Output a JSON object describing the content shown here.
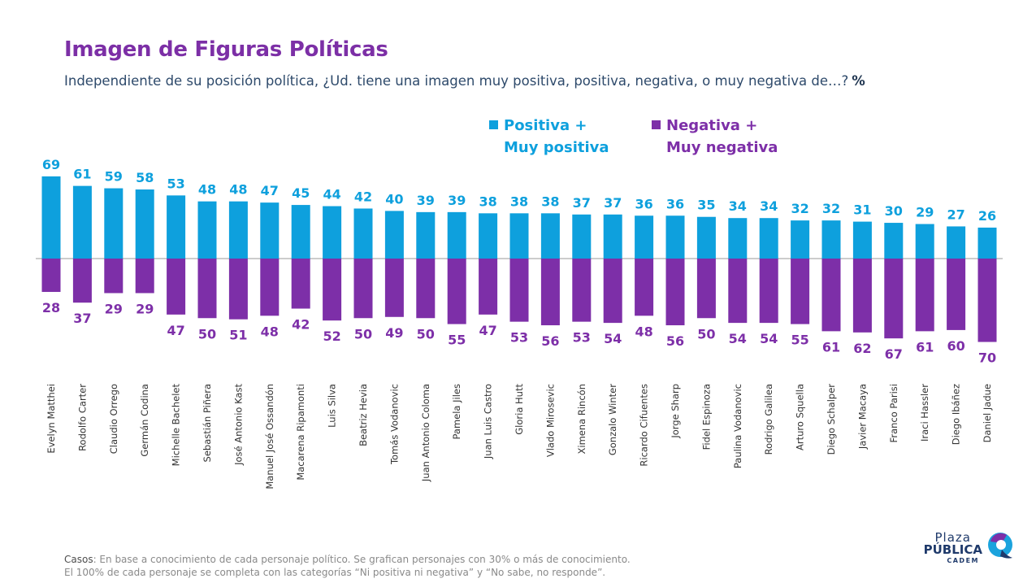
{
  "header": {
    "title": "Imagen de Figuras Políticas",
    "subtitle": "Independiente de su posición política, ¿Ud. tiene una imagen muy positiva, positiva, negativa, o muy negativa de…?",
    "unit": "%"
  },
  "legend": {
    "positive_label": "Positiva +\nMuy positiva",
    "negative_label": "Negativa +\nMuy negativa"
  },
  "colors": {
    "positive": "#0ea0dd",
    "negative": "#7d2fa8",
    "title": "#7c2fa6"
  },
  "chart_data": {
    "type": "bar",
    "title": "Imagen de Figuras Políticas",
    "xlabel": "",
    "ylabel": "",
    "unit": "%",
    "grid": false,
    "legend_position": "top-right",
    "categories": [
      "Evelyn Matthei",
      "Rodolfo Carter",
      "Claudio Orrego",
      "Germán Codina",
      "Michelle Bachelet",
      "Sebastián Piñera",
      "José Antonio Kast",
      "Manuel José Ossandón",
      "Macarena Ripamonti",
      "Luis Silva",
      "Beatriz Hevia",
      "Tomás Vodanovic",
      "Juan Antonio Coloma",
      "Pamela Jiles",
      "Juan Luis Castro",
      "Gloria Hutt",
      "Vlado Mirosevic",
      "Ximena Rincón",
      "Gonzalo Winter",
      "Ricardo Cifuentes",
      "Jorge Sharp",
      "Fidel Espinoza",
      "Paulina Vodanovic",
      "Rodrigo Galilea",
      "Arturo Squella",
      "Diego Schalper",
      "Javier Macaya",
      "Franco Parisi",
      "Iraci Hassler",
      "Diego Ibáñez",
      "Daniel Jadue"
    ],
    "series": [
      {
        "name": "Positiva + Muy positiva",
        "values": [
          69,
          61,
          59,
          58,
          53,
          48,
          48,
          47,
          45,
          44,
          42,
          40,
          39,
          39,
          38,
          38,
          38,
          37,
          37,
          36,
          36,
          35,
          34,
          34,
          32,
          32,
          31,
          30,
          29,
          27,
          26
        ]
      },
      {
        "name": "Negativa + Muy negativa",
        "values": [
          28,
          37,
          29,
          29,
          47,
          50,
          51,
          48,
          42,
          52,
          50,
          49,
          50,
          55,
          47,
          53,
          56,
          53,
          54,
          48,
          56,
          50,
          54,
          54,
          55,
          61,
          62,
          67,
          61,
          60,
          70
        ]
      }
    ]
  },
  "footer": {
    "casos_label": "Casos",
    "line1": ": En base a conocimiento de cada personaje político. Se grafican personajes con 30% o más de conocimiento.",
    "line2": "El 100% de cada personaje se completa con las categorías “Ni positiva ni negativa” y “No sabe, no responde”."
  },
  "logo": {
    "plaza": "Plaza",
    "publica": "PÚBLICA",
    "cadem": "CADEM"
  }
}
